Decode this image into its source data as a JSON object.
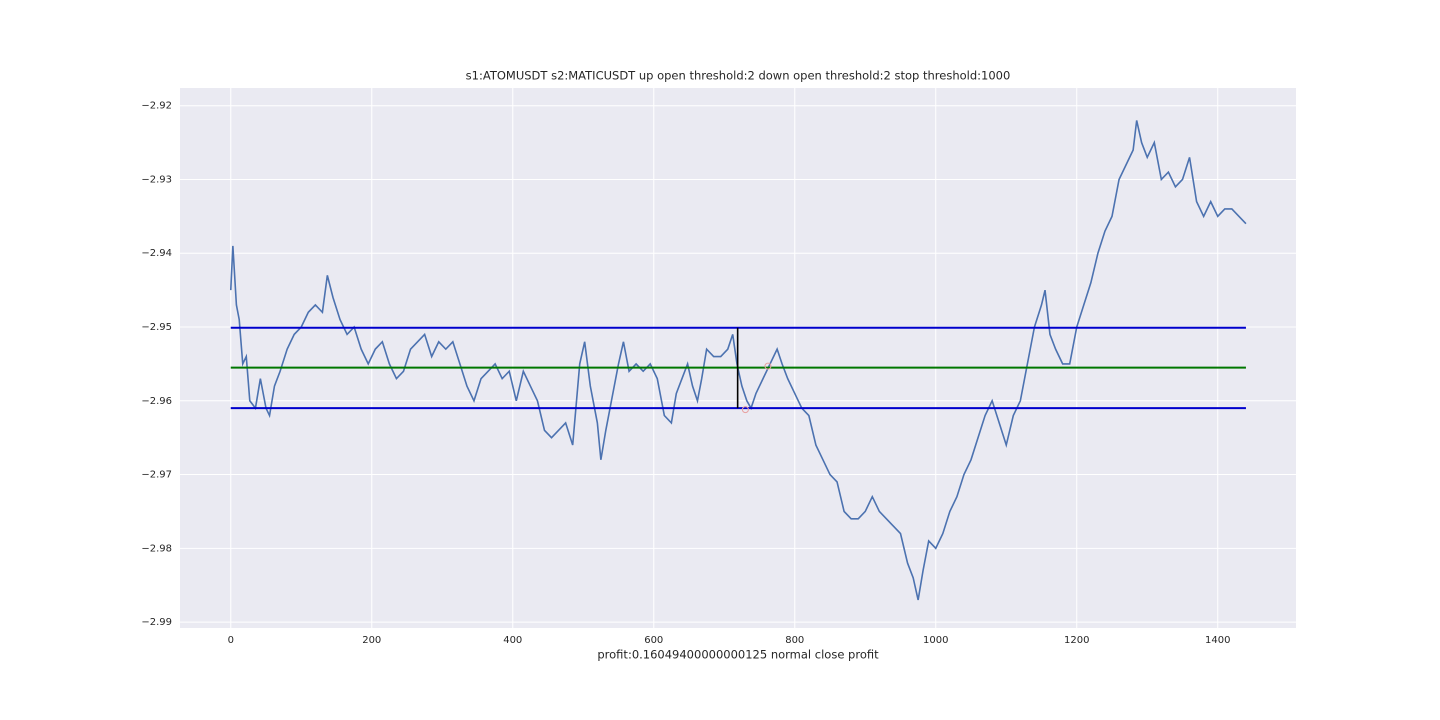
{
  "chart_data": {
    "type": "line",
    "title": "s1:ATOMUSDT s2:MATICUSDT up open threshold:2 down open threshold:2 stop threshold:1000",
    "x_label": "profit:0.16049400000000125 normal close profit",
    "xlim": [
      -72,
      1511
    ],
    "ylim": [
      -2.9908,
      -2.9176
    ],
    "xticks": [
      0,
      200,
      400,
      600,
      800,
      1000,
      1200,
      1400
    ],
    "yticks": [
      {
        "value": -2.92,
        "label": "−2.92"
      },
      {
        "value": -2.93,
        "label": "−2.93"
      },
      {
        "value": -2.94,
        "label": "−2.94"
      },
      {
        "value": -2.95,
        "label": "−2.95"
      },
      {
        "value": -2.96,
        "label": "−2.96"
      },
      {
        "value": -2.97,
        "label": "−2.97"
      },
      {
        "value": -2.98,
        "label": "−2.98"
      },
      {
        "value": -2.99,
        "label": "−2.99"
      }
    ],
    "grid": true,
    "series": [
      {
        "color": "#4c72b0",
        "x": [
          0,
          3,
          8,
          12,
          17,
          22,
          27,
          35,
          42,
          50,
          55,
          62,
          70,
          80,
          90,
          100,
          110,
          120,
          130,
          137,
          145,
          155,
          165,
          175,
          185,
          195,
          205,
          215,
          225,
          235,
          245,
          255,
          265,
          275,
          285,
          295,
          305,
          315,
          325,
          335,
          345,
          355,
          365,
          375,
          385,
          395,
          405,
          415,
          425,
          435,
          445,
          455,
          465,
          475,
          485,
          495,
          502,
          510,
          520,
          525,
          532,
          540,
          550,
          557,
          565,
          575,
          585,
          595,
          605,
          615,
          625,
          632,
          640,
          648,
          655,
          662,
          668,
          675,
          685,
          695,
          705,
          712,
          718,
          725,
          732,
          738,
          745,
          755,
          765,
          775,
          782,
          790,
          800,
          810,
          820,
          830,
          840,
          850,
          860,
          870,
          880,
          890,
          900,
          910,
          920,
          930,
          940,
          950,
          960,
          968,
          975,
          982,
          990,
          1000,
          1010,
          1020,
          1030,
          1040,
          1050,
          1060,
          1070,
          1080,
          1090,
          1100,
          1110,
          1120,
          1130,
          1140,
          1150,
          1155,
          1162,
          1170,
          1180,
          1190,
          1200,
          1210,
          1220,
          1230,
          1240,
          1250,
          1260,
          1270,
          1280,
          1285,
          1292,
          1300,
          1310,
          1320,
          1330,
          1340,
          1350,
          1360,
          1370,
          1380,
          1390,
          1400,
          1410,
          1420,
          1430,
          1440
        ],
        "values": [
          -2.945,
          -2.939,
          -2.947,
          -2.949,
          -2.955,
          -2.954,
          -2.96,
          -2.961,
          -2.957,
          -2.961,
          -2.962,
          -2.958,
          -2.956,
          -2.953,
          -2.951,
          -2.95,
          -2.948,
          -2.947,
          -2.948,
          -2.943,
          -2.946,
          -2.949,
          -2.951,
          -2.95,
          -2.953,
          -2.955,
          -2.953,
          -2.952,
          -2.955,
          -2.957,
          -2.956,
          -2.953,
          -2.952,
          -2.951,
          -2.954,
          -2.952,
          -2.953,
          -2.952,
          -2.955,
          -2.958,
          -2.96,
          -2.957,
          -2.956,
          -2.955,
          -2.957,
          -2.956,
          -2.96,
          -2.956,
          -2.958,
          -2.96,
          -2.964,
          -2.965,
          -2.964,
          -2.963,
          -2.966,
          -2.955,
          -2.952,
          -2.958,
          -2.963,
          -2.968,
          -2.964,
          -2.96,
          -2.955,
          -2.952,
          -2.956,
          -2.955,
          -2.956,
          -2.955,
          -2.957,
          -2.962,
          -2.963,
          -2.959,
          -2.957,
          -2.955,
          -2.958,
          -2.96,
          -2.957,
          -2.953,
          -2.954,
          -2.954,
          -2.953,
          -2.951,
          -2.955,
          -2.958,
          -2.96,
          -2.961,
          -2.959,
          -2.957,
          -2.955,
          -2.953,
          -2.955,
          -2.957,
          -2.959,
          -2.961,
          -2.962,
          -2.966,
          -2.968,
          -2.97,
          -2.971,
          -2.975,
          -2.976,
          -2.976,
          -2.975,
          -2.973,
          -2.975,
          -2.976,
          -2.977,
          -2.978,
          -2.982,
          -2.984,
          -2.987,
          -2.983,
          -2.979,
          -2.98,
          -2.978,
          -2.975,
          -2.973,
          -2.97,
          -2.968,
          -2.965,
          -2.962,
          -2.96,
          -2.963,
          -2.966,
          -2.962,
          -2.96,
          -2.955,
          -2.95,
          -2.947,
          -2.945,
          -2.951,
          -2.953,
          -2.955,
          -2.955,
          -2.95,
          -2.947,
          -2.944,
          -2.94,
          -2.937,
          -2.935,
          -2.93,
          -2.928,
          -2.926,
          -2.922,
          -2.925,
          -2.927,
          -2.925,
          -2.93,
          -2.929,
          -2.931,
          -2.93,
          -2.927,
          -2.933,
          -2.935,
          -2.933,
          -2.935,
          -2.934,
          -2.934,
          -2.935,
          -2.936
        ]
      }
    ],
    "hlines": [
      {
        "value": -2.9501,
        "xmin": 0,
        "xmax": 1440,
        "color": "#0000cc"
      },
      {
        "value": -2.9555,
        "xmin": 0,
        "xmax": 1440,
        "color": "#007700"
      },
      {
        "value": -2.961,
        "xmin": 0,
        "xmax": 1440,
        "color": "#0000cc"
      }
    ],
    "vlines": [
      {
        "x": 719,
        "ymin": -2.961,
        "ymax": -2.9501,
        "color": "#000000"
      }
    ],
    "markers": {
      "x": [
        730,
        762
      ],
      "values": [
        -2.9612,
        -2.9553
      ],
      "color": "#e8a0a0"
    }
  }
}
